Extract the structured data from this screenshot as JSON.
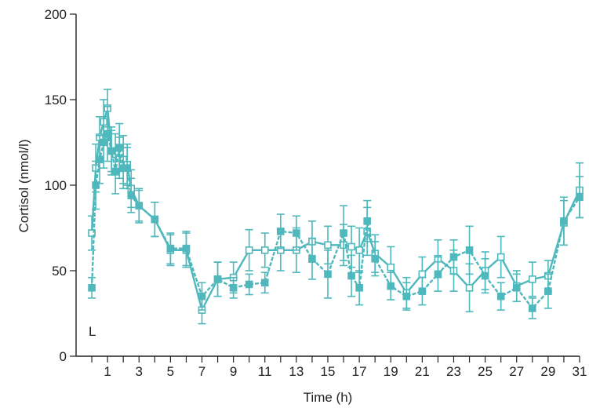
{
  "chart_data": {
    "type": "line",
    "xlabel": "Time (h)",
    "ylabel": "Cortisol (nmol/l)",
    "annotation": "L",
    "xlim": [
      -1,
      31
    ],
    "ylim": [
      0,
      200
    ],
    "x_ticks": [
      1,
      3,
      5,
      7,
      9,
      11,
      13,
      15,
      17,
      19,
      21,
      23,
      25,
      27,
      29,
      31
    ],
    "y_ticks": [
      0,
      50,
      100,
      150,
      200
    ],
    "grid": false,
    "series_color": "#4fb8bc",
    "series": [
      {
        "marker": "open-square",
        "x": [
          0,
          0.25,
          0.5,
          0.75,
          1.0,
          1.25,
          1.5,
          1.75,
          2.0,
          2.25,
          2.5,
          3,
          4,
          5,
          6,
          7,
          8,
          9,
          10,
          11,
          12,
          13,
          14,
          15,
          16,
          16.5,
          17,
          17.5,
          18,
          19,
          20,
          21,
          22,
          23,
          24,
          25,
          26,
          27,
          28,
          29,
          30,
          31
        ],
        "y": [
          72,
          110,
          128,
          137,
          145,
          120,
          118,
          116,
          115,
          112,
          98,
          88,
          80,
          62,
          62,
          27,
          45,
          46,
          62,
          62,
          62,
          62,
          67,
          65,
          65,
          64,
          62,
          73,
          60,
          52,
          37,
          48,
          57,
          50,
          40,
          50,
          58,
          41,
          45,
          47,
          78,
          97
        ],
        "err": [
          10,
          14,
          12,
          13,
          11,
          12,
          12,
          12,
          14,
          12,
          11,
          9,
          10,
          9,
          10,
          8,
          10,
          9,
          12,
          10,
          12,
          13,
          12,
          11,
          12,
          12,
          13,
          14,
          11,
          12,
          9,
          10,
          11,
          12,
          14,
          11,
          12,
          9,
          10,
          9,
          13,
          16
        ]
      },
      {
        "marker": "filled-square",
        "x": [
          0,
          0.25,
          0.5,
          0.75,
          1.0,
          1.25,
          1.5,
          1.75,
          2.0,
          2.25,
          2.5,
          3,
          4,
          5,
          6,
          7,
          8,
          9,
          10,
          11,
          12,
          13,
          14,
          15,
          16,
          16.5,
          17,
          17.5,
          18,
          19,
          20,
          21,
          22,
          23,
          24,
          25,
          26,
          27,
          28,
          29,
          30,
          31
        ],
        "y": [
          40,
          100,
          115,
          125,
          130,
          120,
          108,
          122,
          110,
          110,
          94,
          88,
          80,
          63,
          63,
          35,
          45,
          40,
          42,
          43,
          73,
          72,
          57,
          48,
          72,
          47,
          40,
          79,
          57,
          41,
          35,
          38,
          48,
          58,
          62,
          47,
          35,
          40,
          28,
          38,
          79,
          93
        ],
        "err": [
          6,
          14,
          14,
          15,
          16,
          14,
          13,
          14,
          12,
          12,
          10,
          10,
          10,
          9,
          10,
          8,
          10,
          6,
          6,
          6,
          10,
          10,
          12,
          14,
          16,
          12,
          10,
          12,
          10,
          8,
          8,
          8,
          10,
          10,
          14,
          10,
          8,
          8,
          6,
          10,
          14,
          12
        ]
      }
    ]
  }
}
